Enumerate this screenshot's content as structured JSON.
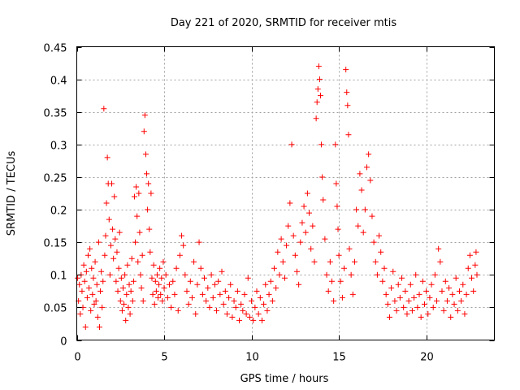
{
  "chart_data": {
    "type": "scatter",
    "marker": "plus",
    "series_color": "#ff0000",
    "title": "Day 221 of 2020, SRMTID for receiver mtis",
    "xlabel": "GPS time / hours",
    "ylabel": "SRMTID / TECUs",
    "xlim": [
      0,
      23.9
    ],
    "ylim": [
      0,
      0.45
    ],
    "grid": true,
    "xticks": [
      0,
      5,
      10,
      15,
      20
    ],
    "xtick_labels": [
      "0",
      "5",
      "10",
      "15",
      "20"
    ],
    "yticks": [
      0,
      0.05,
      0.1,
      0.15,
      0.2,
      0.25,
      0.3,
      0.35,
      0.4,
      0.45
    ],
    "ytick_labels": [
      "0",
      "0.05",
      "0.1",
      "0.15",
      "0.2",
      "0.25",
      "0.3",
      "0.35",
      "0.4",
      "0.45"
    ],
    "series": [
      {
        "name": "SRMTID",
        "points": [
          [
            0.05,
            0.095
          ],
          [
            0.1,
            0.06
          ],
          [
            0.15,
            0.085
          ],
          [
            0.2,
            0.04
          ],
          [
            0.25,
            0.1
          ],
          [
            0.3,
            0.075
          ],
          [
            0.35,
            0.05
          ],
          [
            0.4,
            0.115
          ],
          [
            0.45,
            0.09
          ],
          [
            0.5,
            0.02
          ],
          [
            0.55,
            0.105
          ],
          [
            0.6,
            0.065
          ],
          [
            0.65,
            0.13
          ],
          [
            0.7,
            0.08
          ],
          [
            0.75,
            0.14
          ],
          [
            0.8,
            0.045
          ],
          [
            0.85,
            0.11
          ],
          [
            0.9,
            0.07
          ],
          [
            0.95,
            0.095
          ],
          [
            1.0,
            0.055
          ],
          [
            1.05,
            0.12
          ],
          [
            1.1,
            0.06
          ],
          [
            1.15,
            0.085
          ],
          [
            1.2,
            0.035
          ],
          [
            1.25,
            0.15
          ],
          [
            1.3,
            0.02
          ],
          [
            1.35,
            0.075
          ],
          [
            1.4,
            0.105
          ],
          [
            1.45,
            0.05
          ],
          [
            1.5,
            0.09
          ],
          [
            1.55,
            0.355
          ],
          [
            1.6,
            0.13
          ],
          [
            1.65,
            0.16
          ],
          [
            1.7,
            0.21
          ],
          [
            1.75,
            0.28
          ],
          [
            1.8,
            0.24
          ],
          [
            1.85,
            0.185
          ],
          [
            1.9,
            0.1
          ],
          [
            1.95,
            0.145
          ],
          [
            2.0,
            0.24
          ],
          [
            2.05,
            0.17
          ],
          [
            2.1,
            0.125
          ],
          [
            2.15,
            0.22
          ],
          [
            2.2,
            0.155
          ],
          [
            2.25,
            0.09
          ],
          [
            2.3,
            0.135
          ],
          [
            2.35,
            0.075
          ],
          [
            2.4,
            0.11
          ],
          [
            2.45,
            0.165
          ],
          [
            2.5,
            0.06
          ],
          [
            2.55,
            0.095
          ],
          [
            2.6,
            0.045
          ],
          [
            2.65,
            0.08
          ],
          [
            2.7,
            0.055
          ],
          [
            2.75,
            0.1
          ],
          [
            2.8,
            0.03
          ],
          [
            2.85,
            0.07
          ],
          [
            2.9,
            0.115
          ],
          [
            2.95,
            0.05
          ],
          [
            3.0,
            0.085
          ],
          [
            3.05,
            0.04
          ],
          [
            3.1,
            0.075
          ],
          [
            3.15,
            0.125
          ],
          [
            3.2,
            0.06
          ],
          [
            3.25,
            0.09
          ],
          [
            3.3,
            0.22
          ],
          [
            3.35,
            0.15
          ],
          [
            3.4,
            0.235
          ],
          [
            3.45,
            0.19
          ],
          [
            3.5,
            0.12
          ],
          [
            3.55,
            0.225
          ],
          [
            3.6,
            0.165
          ],
          [
            3.65,
            0.1
          ],
          [
            3.7,
            0.08
          ],
          [
            3.75,
            0.13
          ],
          [
            3.8,
            0.06
          ],
          [
            3.85,
            0.32
          ],
          [
            3.9,
            0.345
          ],
          [
            3.95,
            0.285
          ],
          [
            4.0,
            0.255
          ],
          [
            4.05,
            0.2
          ],
          [
            4.1,
            0.24
          ],
          [
            4.15,
            0.17
          ],
          [
            4.2,
            0.135
          ],
          [
            4.25,
            0.225
          ],
          [
            4.3,
            0.095
          ],
          [
            4.35,
            0.07
          ],
          [
            4.4,
            0.115
          ],
          [
            4.45,
            0.055
          ],
          [
            4.5,
            0.09
          ],
          [
            4.55,
            0.075
          ],
          [
            4.6,
            0.1
          ],
          [
            4.65,
            0.065
          ],
          [
            4.7,
            0.085
          ],
          [
            4.75,
            0.11
          ],
          [
            4.8,
            0.07
          ],
          [
            4.85,
            0.095
          ],
          [
            4.9,
            0.06
          ],
          [
            4.95,
            0.12
          ],
          [
            5.0,
            0.08
          ],
          [
            5.1,
            0.1
          ],
          [
            5.2,
            0.065
          ],
          [
            5.3,
            0.085
          ],
          [
            5.4,
            0.05
          ],
          [
            5.5,
            0.09
          ],
          [
            5.6,
            0.07
          ],
          [
            5.7,
            0.11
          ],
          [
            5.8,
            0.045
          ],
          [
            5.9,
            0.13
          ],
          [
            6.0,
            0.16
          ],
          [
            6.1,
            0.145
          ],
          [
            6.2,
            0.1
          ],
          [
            6.3,
            0.075
          ],
          [
            6.4,
            0.055
          ],
          [
            6.5,
            0.09
          ],
          [
            6.6,
            0.065
          ],
          [
            6.7,
            0.12
          ],
          [
            6.8,
            0.04
          ],
          [
            6.9,
            0.085
          ],
          [
            7.0,
            0.15
          ],
          [
            7.1,
            0.11
          ],
          [
            7.2,
            0.07
          ],
          [
            7.3,
            0.095
          ],
          [
            7.4,
            0.06
          ],
          [
            7.5,
            0.08
          ],
          [
            7.6,
            0.05
          ],
          [
            7.7,
            0.1
          ],
          [
            7.8,
            0.065
          ],
          [
            7.9,
            0.085
          ],
          [
            8.0,
            0.045
          ],
          [
            8.1,
            0.09
          ],
          [
            8.2,
            0.07
          ],
          [
            8.3,
            0.105
          ],
          [
            8.4,
            0.055
          ],
          [
            8.5,
            0.075
          ],
          [
            8.6,
            0.04
          ],
          [
            8.7,
            0.065
          ],
          [
            8.8,
            0.085
          ],
          [
            8.9,
            0.035
          ],
          [
            9.0,
            0.06
          ],
          [
            9.1,
            0.05
          ],
          [
            9.2,
            0.075
          ],
          [
            9.3,
            0.03
          ],
          [
            9.4,
            0.055
          ],
          [
            9.5,
            0.045
          ],
          [
            9.6,
            0.07
          ],
          [
            9.7,
            0.04
          ],
          [
            9.8,
            0.095
          ],
          [
            9.9,
            0.035
          ],
          [
            10.0,
            0.06
          ],
          [
            10.1,
            0.03
          ],
          [
            10.2,
            0.05
          ],
          [
            10.3,
            0.075
          ],
          [
            10.4,
            0.04
          ],
          [
            10.5,
            0.065
          ],
          [
            10.6,
            0.03
          ],
          [
            10.7,
            0.055
          ],
          [
            10.8,
            0.085
          ],
          [
            10.9,
            0.045
          ],
          [
            11.0,
            0.07
          ],
          [
            11.1,
            0.09
          ],
          [
            11.2,
            0.06
          ],
          [
            11.3,
            0.11
          ],
          [
            11.4,
            0.08
          ],
          [
            11.5,
            0.135
          ],
          [
            11.6,
            0.1
          ],
          [
            11.7,
            0.155
          ],
          [
            11.8,
            0.12
          ],
          [
            11.9,
            0.095
          ],
          [
            12.0,
            0.145
          ],
          [
            12.1,
            0.175
          ],
          [
            12.2,
            0.21
          ],
          [
            12.3,
            0.3
          ],
          [
            12.4,
            0.16
          ],
          [
            12.5,
            0.13
          ],
          [
            12.6,
            0.105
          ],
          [
            12.7,
            0.085
          ],
          [
            12.8,
            0.15
          ],
          [
            12.9,
            0.18
          ],
          [
            13.0,
            0.205
          ],
          [
            13.1,
            0.165
          ],
          [
            13.2,
            0.225
          ],
          [
            13.3,
            0.195
          ],
          [
            13.4,
            0.14
          ],
          [
            13.5,
            0.175
          ],
          [
            13.6,
            0.12
          ],
          [
            13.7,
            0.34
          ],
          [
            13.75,
            0.365
          ],
          [
            13.8,
            0.385
          ],
          [
            13.85,
            0.42
          ],
          [
            13.9,
            0.4
          ],
          [
            13.95,
            0.375
          ],
          [
            14.0,
            0.3
          ],
          [
            14.05,
            0.25
          ],
          [
            14.1,
            0.215
          ],
          [
            14.2,
            0.155
          ],
          [
            14.3,
            0.1
          ],
          [
            14.4,
            0.075
          ],
          [
            14.5,
            0.12
          ],
          [
            14.6,
            0.09
          ],
          [
            14.7,
            0.06
          ],
          [
            14.8,
            0.3
          ],
          [
            14.85,
            0.24
          ],
          [
            14.9,
            0.205
          ],
          [
            14.95,
            0.17
          ],
          [
            15.0,
            0.13
          ],
          [
            15.1,
            0.09
          ],
          [
            15.2,
            0.065
          ],
          [
            15.3,
            0.11
          ],
          [
            15.4,
            0.415
          ],
          [
            15.45,
            0.38
          ],
          [
            15.5,
            0.36
          ],
          [
            15.55,
            0.315
          ],
          [
            15.6,
            0.14
          ],
          [
            15.7,
            0.1
          ],
          [
            15.8,
            0.07
          ],
          [
            15.9,
            0.12
          ],
          [
            16.0,
            0.2
          ],
          [
            16.1,
            0.175
          ],
          [
            16.2,
            0.255
          ],
          [
            16.3,
            0.23
          ],
          [
            16.4,
            0.165
          ],
          [
            16.5,
            0.2
          ],
          [
            16.6,
            0.265
          ],
          [
            16.7,
            0.285
          ],
          [
            16.8,
            0.245
          ],
          [
            16.9,
            0.19
          ],
          [
            17.0,
            0.15
          ],
          [
            17.1,
            0.12
          ],
          [
            17.2,
            0.1
          ],
          [
            17.3,
            0.16
          ],
          [
            17.4,
            0.135
          ],
          [
            17.5,
            0.09
          ],
          [
            17.6,
            0.11
          ],
          [
            17.7,
            0.07
          ],
          [
            17.8,
            0.055
          ],
          [
            17.9,
            0.035
          ],
          [
            18.0,
            0.08
          ],
          [
            18.1,
            0.105
          ],
          [
            18.2,
            0.06
          ],
          [
            18.3,
            0.045
          ],
          [
            18.4,
            0.085
          ],
          [
            18.5,
            0.065
          ],
          [
            18.6,
            0.095
          ],
          [
            18.7,
            0.05
          ],
          [
            18.8,
            0.075
          ],
          [
            18.9,
            0.04
          ],
          [
            19.0,
            0.06
          ],
          [
            19.1,
            0.085
          ],
          [
            19.2,
            0.045
          ],
          [
            19.3,
            0.065
          ],
          [
            19.4,
            0.1
          ],
          [
            19.5,
            0.05
          ],
          [
            19.6,
            0.07
          ],
          [
            19.7,
            0.035
          ],
          [
            19.8,
            0.09
          ],
          [
            19.9,
            0.055
          ],
          [
            20.0,
            0.075
          ],
          [
            20.1,
            0.04
          ],
          [
            20.2,
            0.065
          ],
          [
            20.3,
            0.085
          ],
          [
            20.4,
            0.05
          ],
          [
            20.5,
            0.1
          ],
          [
            20.6,
            0.06
          ],
          [
            20.7,
            0.14
          ],
          [
            20.8,
            0.12
          ],
          [
            20.9,
            0.075
          ],
          [
            21.0,
            0.045
          ],
          [
            21.1,
            0.09
          ],
          [
            21.2,
            0.06
          ],
          [
            21.3,
            0.08
          ],
          [
            21.4,
            0.035
          ],
          [
            21.5,
            0.07
          ],
          [
            21.6,
            0.055
          ],
          [
            21.7,
            0.095
          ],
          [
            21.8,
            0.045
          ],
          [
            21.9,
            0.075
          ],
          [
            22.0,
            0.06
          ],
          [
            22.1,
            0.085
          ],
          [
            22.2,
            0.04
          ],
          [
            22.3,
            0.07
          ],
          [
            22.4,
            0.11
          ],
          [
            22.5,
            0.13
          ],
          [
            22.6,
            0.095
          ],
          [
            22.7,
            0.075
          ],
          [
            22.8,
            0.115
          ],
          [
            22.85,
            0.135
          ],
          [
            22.9,
            0.1
          ]
        ]
      }
    ]
  }
}
